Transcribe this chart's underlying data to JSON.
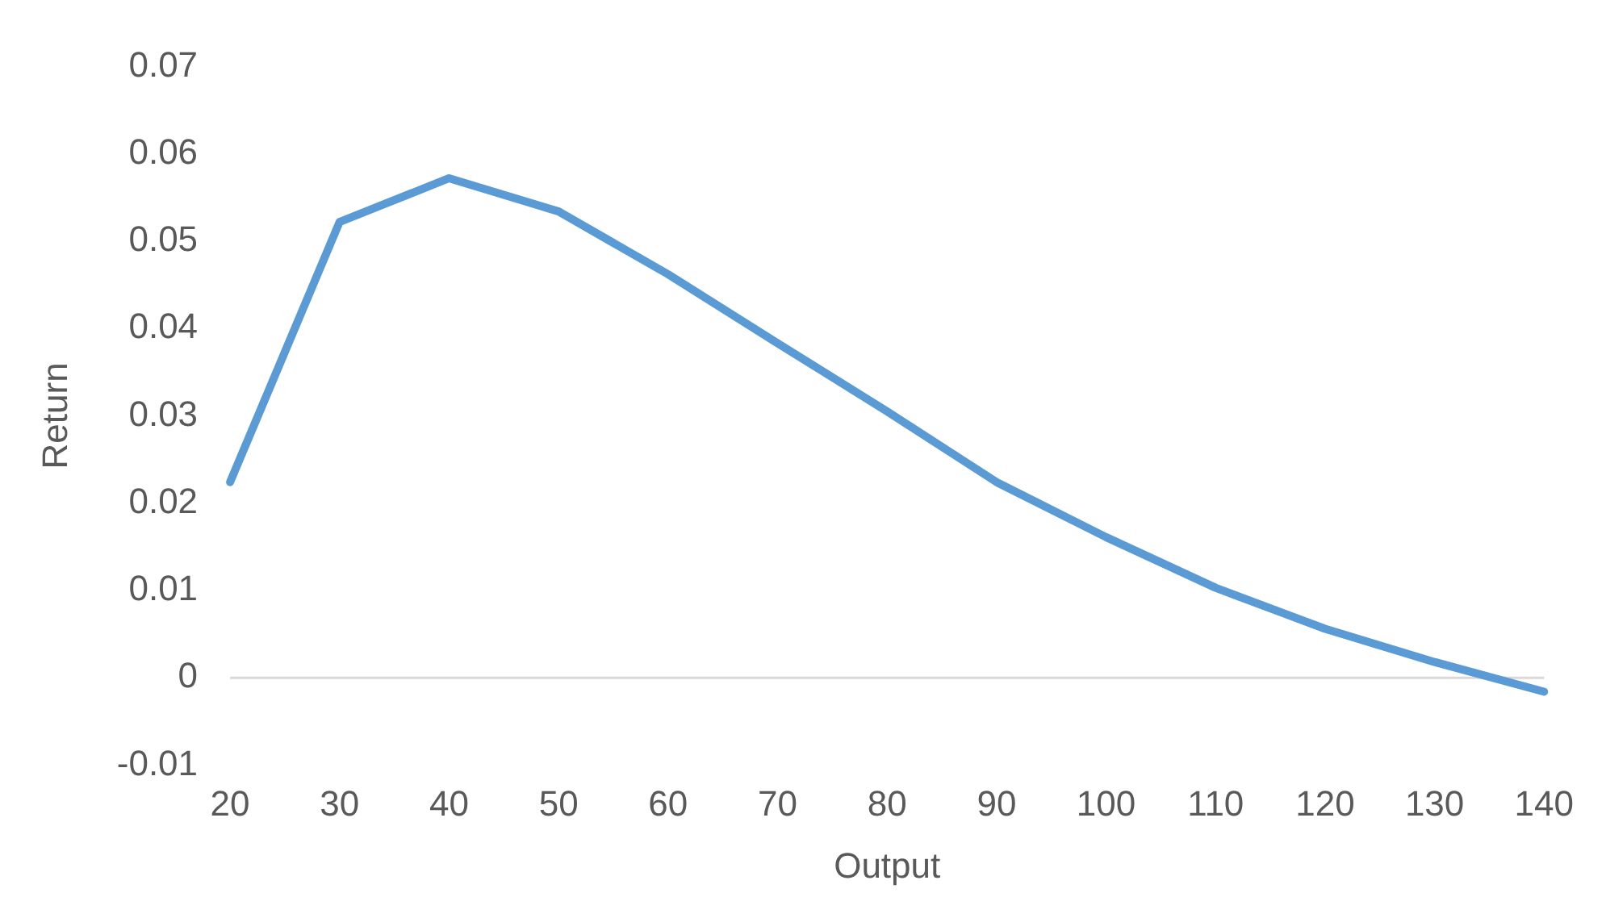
{
  "chart_data": {
    "type": "line",
    "xlabel": "Output",
    "ylabel": "Return",
    "categories": [
      "20",
      "30",
      "40",
      "50",
      "60",
      "70",
      "80",
      "90",
      "100",
      "110",
      "120",
      "130",
      "140"
    ],
    "series": [
      {
        "color": "#5b9bd5",
        "values": [
          0.0224,
          0.0522,
          0.0572,
          0.0534,
          0.0462,
          0.0383,
          0.0305,
          0.0224,
          0.0161,
          0.0103,
          0.0056,
          0.0018,
          -0.0016
        ]
      }
    ],
    "ylim": [
      -0.01,
      0.07
    ],
    "yticks": [
      -0.01,
      0,
      0.01,
      0.02,
      0.03,
      0.04,
      0.05,
      0.06,
      0.07
    ],
    "ref_lines": [
      {
        "axis": "y",
        "value": 0,
        "color": "#d9d9d9"
      }
    ],
    "grid": false,
    "legend": false,
    "marker": "none",
    "line_style": "solid"
  }
}
